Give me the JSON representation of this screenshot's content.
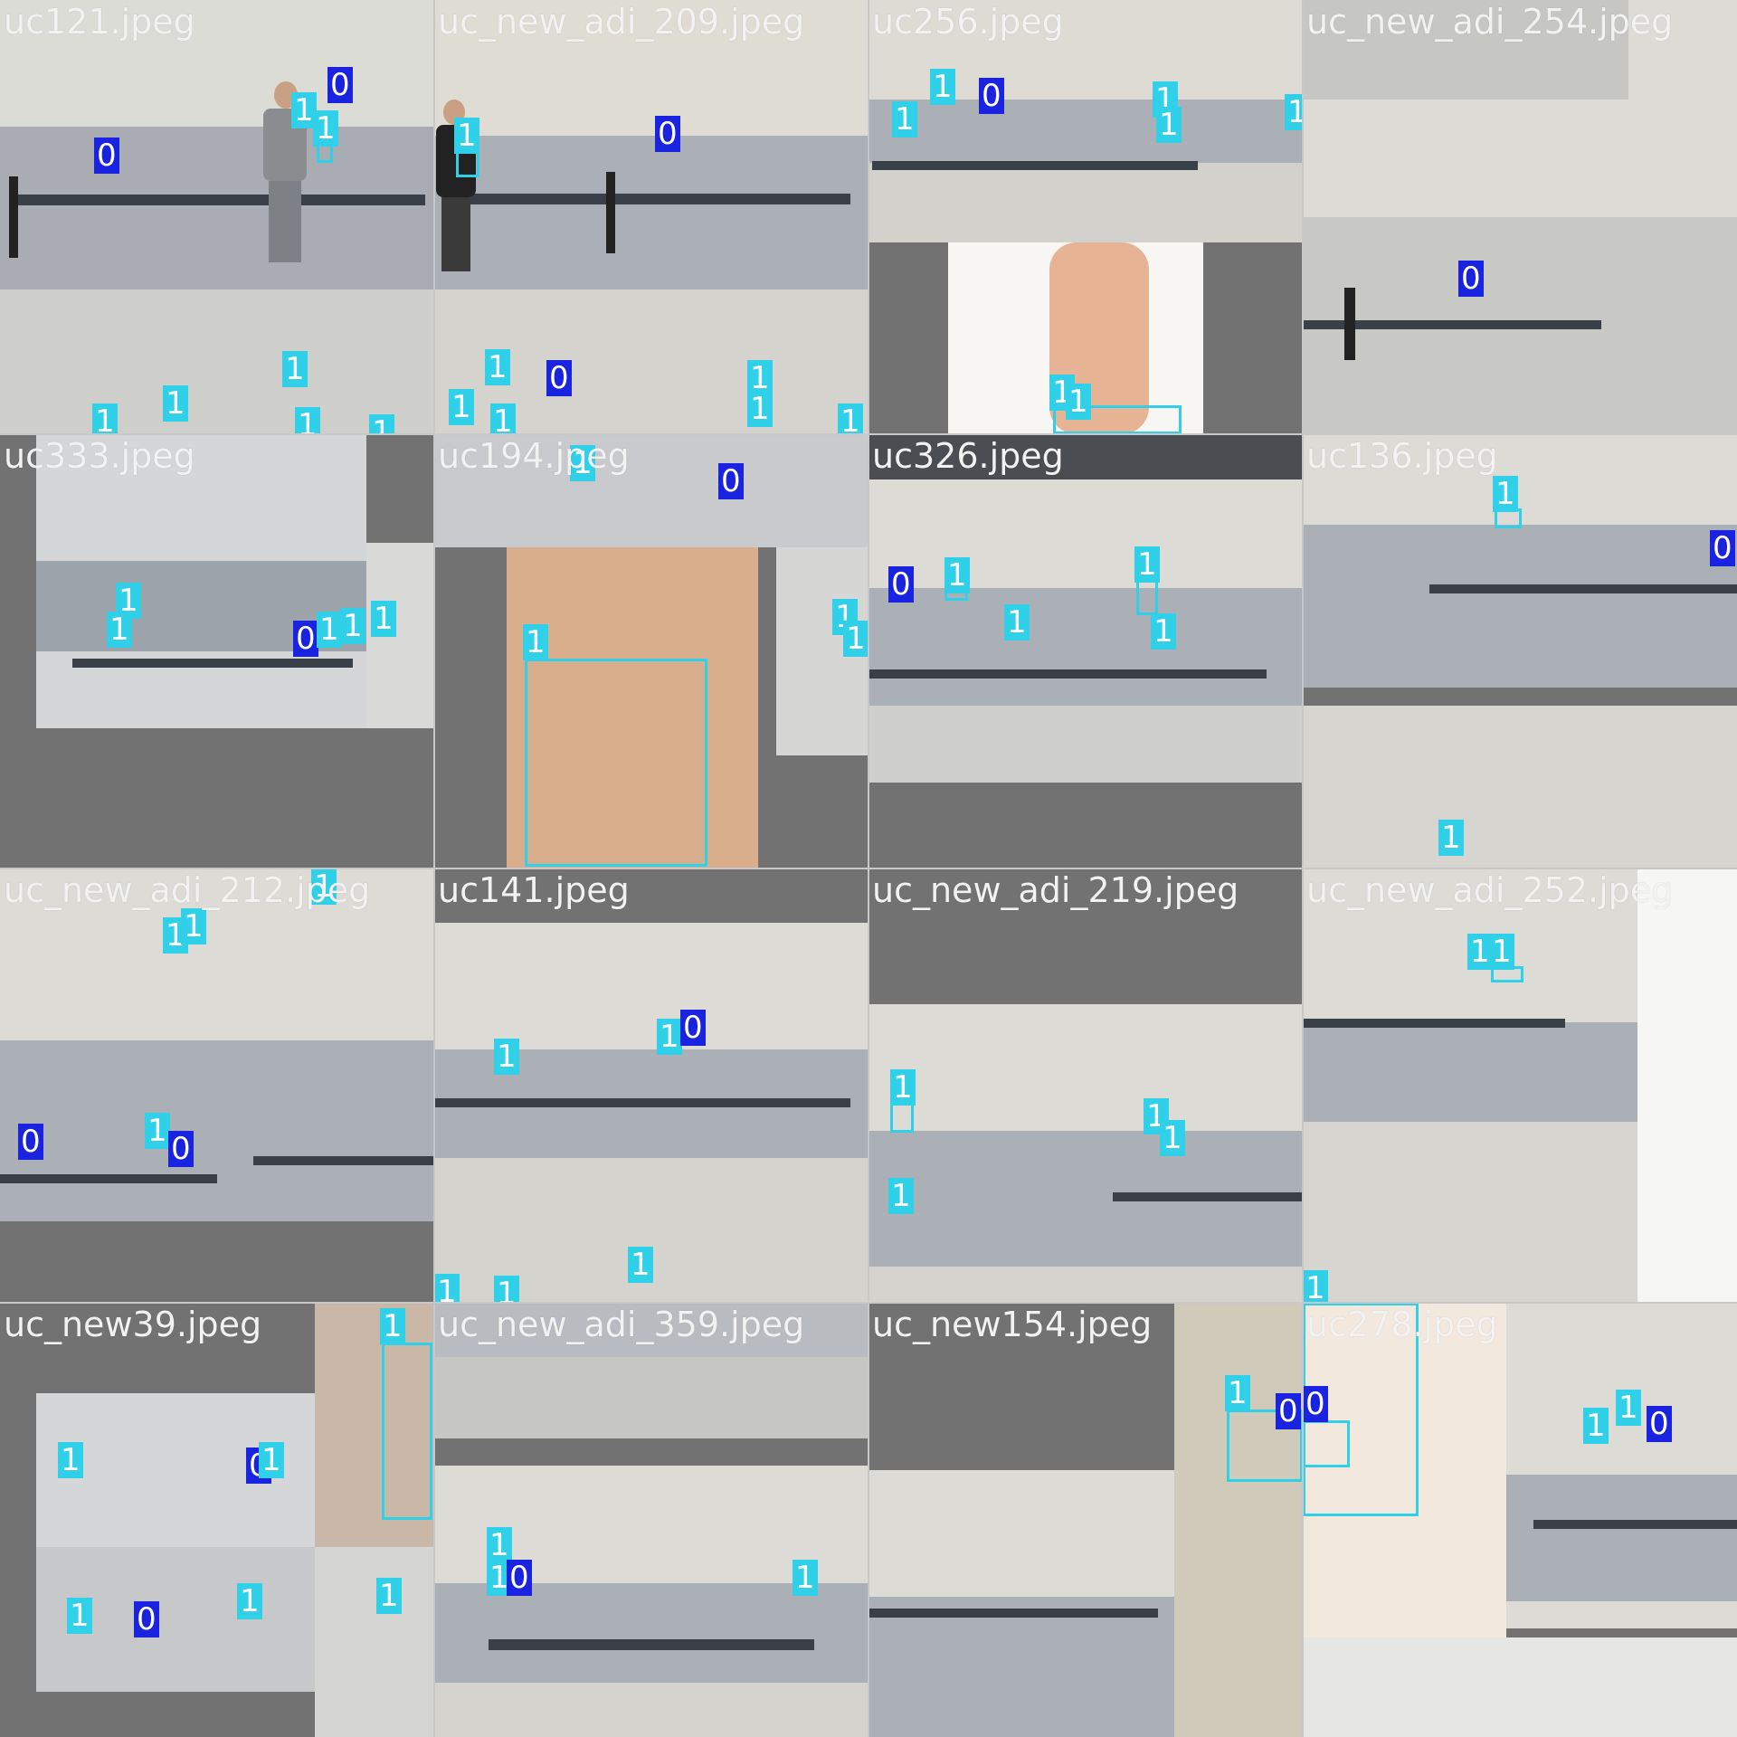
{
  "colors": {
    "class_1": "#2fd0e8",
    "class_0": "#1a23e0",
    "pad": "#727272"
  },
  "tiles": [
    {
      "file": "uc121.jpeg"
    },
    {
      "file": "uc_new_adi_209.jpeg"
    },
    {
      "file": "uc256.jpeg"
    },
    {
      "file": "uc_new_adi_254.jpeg"
    },
    {
      "file": "uc333.jpeg"
    },
    {
      "file": "uc194.jpeg"
    },
    {
      "file": "uc326.jpeg"
    },
    {
      "file": "uc136.jpeg"
    },
    {
      "file": "uc_new_adi_212.jpeg"
    },
    {
      "file": "uc141.jpeg"
    },
    {
      "file": "uc_new_adi_219.jpeg"
    },
    {
      "file": "uc_new_adi_252.jpeg"
    },
    {
      "file": "uc_new39.jpeg"
    },
    {
      "file": "uc_new_adi_359.jpeg"
    },
    {
      "file": "uc_new154.jpeg"
    },
    {
      "file": "uc278.jpeg"
    }
  ],
  "labels": {
    "zero": "0",
    "one": "1"
  }
}
